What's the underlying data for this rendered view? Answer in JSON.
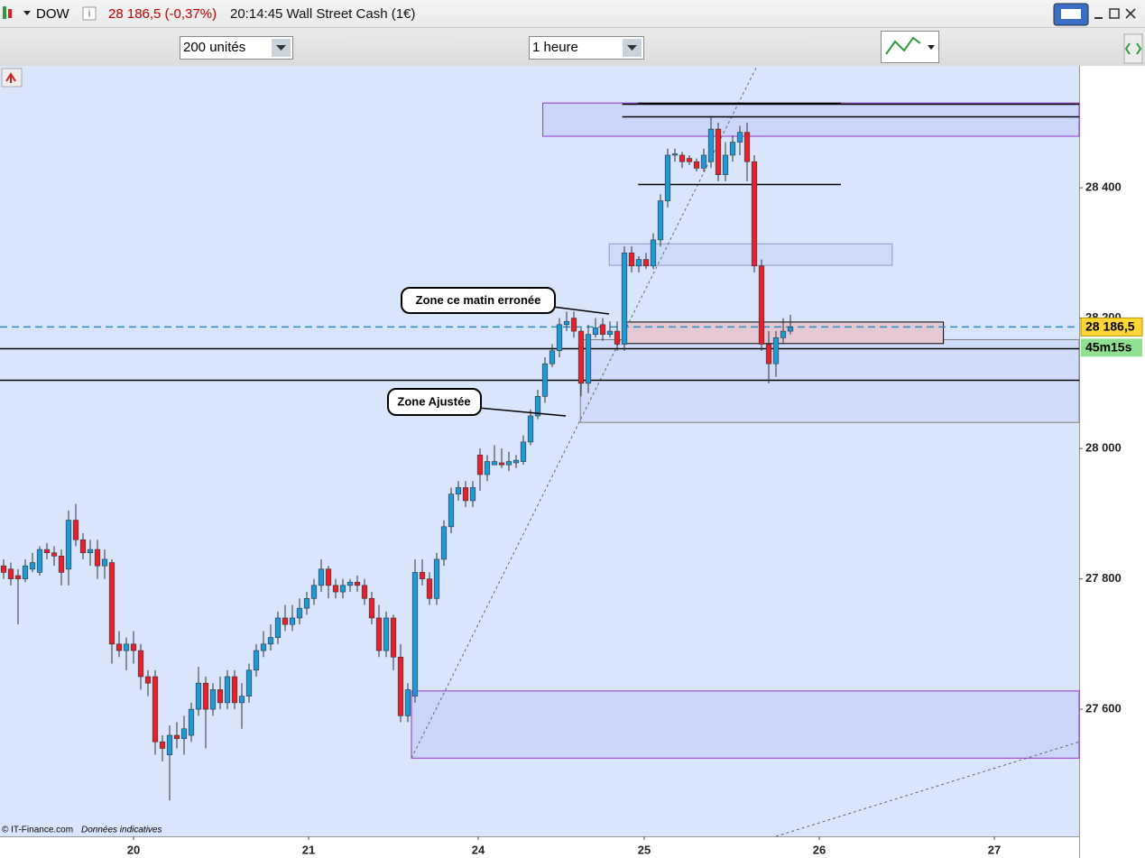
{
  "toolbar": {
    "symbol": "DOW",
    "quote": "28 186,5 (-0,37%)",
    "info": "20:14:45 Wall Street Cash (1€)",
    "units": "200 unités",
    "period": "1 heure"
  },
  "footer": {
    "source": "© IT-Finance.com",
    "note": "Données indicatives"
  },
  "chart_data": {
    "type": "candlestick",
    "x": [
      0,
      1,
      2,
      3,
      4,
      5,
      6,
      7,
      8,
      9,
      10,
      11,
      12,
      13,
      14,
      15,
      16,
      17,
      18,
      19,
      20,
      21,
      22,
      23,
      24,
      25,
      26,
      27,
      28,
      29,
      30,
      31,
      32,
      33,
      34,
      35,
      36,
      37,
      38,
      39,
      40,
      41,
      42,
      43,
      44,
      45,
      46,
      47,
      48,
      49,
      50,
      51,
      52,
      53,
      54,
      55,
      56,
      57,
      58,
      59,
      60,
      61,
      62,
      63,
      64,
      65,
      66,
      67,
      68,
      69,
      70,
      71,
      72,
      73,
      74,
      75,
      76,
      77,
      78,
      79,
      80,
      81,
      82,
      83,
      84,
      85,
      86,
      87,
      88,
      89,
      90,
      91,
      92,
      93,
      94,
      95,
      96,
      97,
      98,
      99,
      100,
      101,
      102,
      103,
      104,
      105,
      106,
      107,
      108,
      109
    ],
    "open": [
      27820,
      27815,
      27805,
      27800,
      27815,
      27810,
      27845,
      27840,
      27835,
      27815,
      27890,
      27860,
      27840,
      27845,
      27820,
      27825,
      27700,
      27690,
      27700,
      27690,
      27650,
      27650,
      27550,
      27530,
      27560,
      27555,
      27560,
      27600,
      27640,
      27600,
      27630,
      27610,
      27650,
      27610,
      27620,
      27660,
      27690,
      27700,
      27710,
      27740,
      27730,
      27740,
      27755,
      27770,
      27790,
      27815,
      27790,
      27780,
      27790,
      27795,
      27790,
      27770,
      27740,
      27690,
      27740,
      27680,
      27590,
      27620,
      27810,
      27800,
      27770,
      27830,
      27880,
      27930,
      27940,
      27920,
      27990,
      27960,
      27975,
      27978,
      27975,
      27978,
      27980,
      28010,
      28050,
      28080,
      28130,
      28150,
      28190,
      28200,
      28180,
      28100,
      28175,
      28190,
      28175,
      28180,
      28160,
      28300,
      28280,
      28290,
      28280,
      28320,
      28380,
      28450,
      28450,
      28445,
      28440,
      28430,
      28440,
      28490,
      28420,
      28450,
      28470,
      28485,
      28440,
      28280,
      28160,
      28130,
      28170,
      28180
    ],
    "high": [
      27830,
      27825,
      27815,
      27830,
      27840,
      27850,
      27855,
      27850,
      27845,
      27905,
      27915,
      27870,
      27860,
      27860,
      27845,
      27830,
      27720,
      27710,
      27720,
      27700,
      27660,
      27660,
      27560,
      27575,
      27580,
      27590,
      27610,
      27665,
      27650,
      27640,
      27650,
      27660,
      27660,
      27640,
      27670,
      27700,
      27720,
      27730,
      27750,
      27760,
      27760,
      27770,
      27780,
      27800,
      27830,
      27820,
      27800,
      27800,
      27800,
      27805,
      27800,
      27780,
      27760,
      27750,
      27745,
      27700,
      27640,
      27830,
      27830,
      27810,
      27840,
      27890,
      27940,
      27950,
      27950,
      27950,
      28000,
      27990,
      28005,
      28000,
      27995,
      27990,
      28020,
      28060,
      28090,
      28140,
      28160,
      28200,
      28210,
      28210,
      28185,
      28190,
      28200,
      28200,
      28195,
      28195,
      28310,
      28310,
      28295,
      28300,
      28330,
      28390,
      28460,
      28460,
      28455,
      28450,
      28445,
      28460,
      28510,
      28500,
      28470,
      28480,
      28495,
      28500,
      28450,
      28290,
      28180,
      28180,
      28200,
      28205
    ],
    "low": [
      27800,
      27790,
      27730,
      27795,
      27810,
      27805,
      27830,
      27820,
      27790,
      27790,
      27850,
      27830,
      27820,
      27800,
      27800,
      27670,
      27680,
      27660,
      27670,
      27630,
      27620,
      27530,
      27520,
      27460,
      27540,
      27530,
      27550,
      27590,
      27540,
      27590,
      27600,
      27600,
      27600,
      27570,
      27610,
      27650,
      27680,
      27690,
      27700,
      27720,
      27720,
      27730,
      27745,
      27760,
      27780,
      27770,
      27770,
      27770,
      27780,
      27780,
      27760,
      27730,
      27680,
      27680,
      27660,
      27580,
      27580,
      27610,
      27790,
      27760,
      27760,
      27820,
      27870,
      27920,
      27910,
      27910,
      27935,
      27950,
      27975,
      27970,
      27965,
      27970,
      27975,
      28005,
      28045,
      28070,
      28125,
      28140,
      28180,
      28170,
      28080,
      28085,
      28170,
      28165,
      28170,
      28150,
      28150,
      28270,
      28270,
      28275,
      28275,
      28310,
      28370,
      28440,
      28430,
      28435,
      28425,
      28425,
      28430,
      28410,
      28410,
      28440,
      28450,
      28410,
      28270,
      28150,
      28100,
      28110,
      28160,
      28175
    ],
    "close": [
      27810,
      27800,
      27800,
      27820,
      27825,
      27845,
      27840,
      27835,
      27810,
      27890,
      27860,
      27840,
      27845,
      27820,
      27830,
      27700,
      27690,
      27700,
      27690,
      27650,
      27640,
      27550,
      27540,
      27560,
      27555,
      27570,
      27600,
      27640,
      27600,
      27630,
      27610,
      27650,
      27610,
      27620,
      27660,
      27690,
      27700,
      27710,
      27740,
      27730,
      27740,
      27755,
      27770,
      27790,
      27815,
      27790,
      27780,
      27790,
      27795,
      27790,
      27770,
      27740,
      27690,
      27740,
      27680,
      27590,
      27630,
      27810,
      27800,
      27770,
      27830,
      27880,
      27930,
      27940,
      27920,
      27940,
      27960,
      27980,
      27980,
      27975,
      27980,
      27982,
      28010,
      28050,
      28080,
      28130,
      28150,
      28190,
      28195,
      28180,
      28100,
      28175,
      28185,
      28175,
      28180,
      28160,
      28300,
      28280,
      28290,
      28280,
      28320,
      28380,
      28450,
      28452,
      28440,
      28440,
      28430,
      28450,
      28490,
      28420,
      28450,
      28470,
      28485,
      28440,
      28280,
      28160,
      28130,
      28170,
      28180,
      28186.5
    ],
    "up_color": "#1e9bd7",
    "down_color": "#e8202a",
    "xlim": [
      -0.5,
      149
    ],
    "xticks": [
      {
        "value": 18,
        "label": "20"
      },
      {
        "value": 42.25,
        "label": "21"
      },
      {
        "value": 65.75,
        "label": "24"
      },
      {
        "value": 88.75,
        "label": "25"
      },
      {
        "value": 113,
        "label": "26"
      },
      {
        "value": 137.25,
        "label": "27"
      }
    ],
    "ylim": [
      27405,
      28587
    ],
    "yticks": [
      {
        "value": 27600,
        "label": "27 600"
      },
      {
        "value": 27800,
        "label": "27 800"
      },
      {
        "value": 28000,
        "label": "28 000"
      },
      {
        "value": 28200,
        "label": "28 200"
      },
      {
        "value": 28400,
        "label": "28 400"
      }
    ],
    "current_price": {
      "value": 28186.5,
      "label": "28 186,5",
      "color": "#2a8fc0"
    },
    "timer": "45m15s",
    "levels": [
      {
        "y": 28530,
        "x": [
          87.9,
          116
        ]
      },
      {
        "y": 28529,
        "x": [
          85.7,
          149
        ]
      },
      {
        "y": 28509,
        "x": [
          85.7,
          149
        ]
      },
      {
        "y": 28406,
        "x": [
          87.9,
          116
        ]
      },
      {
        "y": 28154,
        "x": [
          -0.5,
          149
        ]
      },
      {
        "y": 28105,
        "x": [
          -0.5,
          149
        ]
      }
    ],
    "zones": [
      {
        "x": [
          74.7,
          149
        ],
        "y": [
          28479,
          28530
        ],
        "color": "#9932cc",
        "fill": "#cbd7fa"
      },
      {
        "x": [
          83.9,
          123.1
        ],
        "y": [
          28281,
          28314
        ],
        "color": "#8a9acc",
        "fill": "#cfdbfa"
      },
      {
        "x": [
          79.9,
          149
        ],
        "y": [
          28040,
          28167
        ],
        "color": "#808080",
        "fill": "#cfdcfa"
      },
      {
        "x": [
          85.7,
          130.2
        ],
        "y": [
          28161,
          28194
        ],
        "color": "#000000",
        "fill": "#e4c8d4"
      },
      {
        "x": [
          56.5,
          149
        ],
        "y": [
          27525,
          27628
        ],
        "color": "#9932cc",
        "fill": "#cbd7fa"
      }
    ],
    "trendlines": [
      {
        "x": [
          56.5,
          104.25
        ],
        "y": [
          27525,
          28584
        ]
      },
      {
        "x": [
          107,
          149
        ],
        "y": [
          27405,
          27550
        ]
      }
    ],
    "annotations": [
      "Zone ce matin erronée",
      "Zone Ajustée"
    ]
  }
}
